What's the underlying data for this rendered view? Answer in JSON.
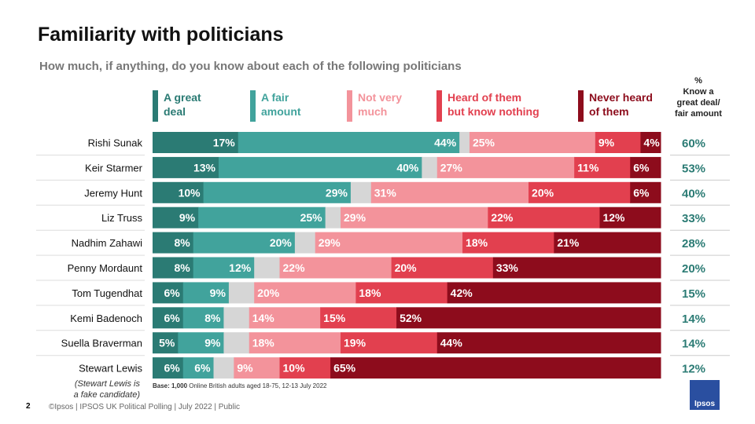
{
  "chart_data": {
    "type": "bar",
    "orientation": "horizontal-stacked-100",
    "title": "Familiarity with politicians",
    "subtitle": "How much, if anything, do you know about each of the following politicians",
    "categories": [
      "Rishi Sunak",
      "Keir Starmer",
      "Jeremy Hunt",
      "Liz Truss",
      "Nadhim Zahawi",
      "Penny Mordaunt",
      "Tom Tugendhat",
      "Kemi Badenoch",
      "Suella Braverman",
      "Stewart Lewis"
    ],
    "series": [
      {
        "name": "A great deal",
        "color": "#2b7b74",
        "values": [
          17,
          13,
          10,
          9,
          8,
          8,
          6,
          6,
          5,
          6
        ],
        "label_align": "right"
      },
      {
        "name": "A fair amount",
        "color": "#41a39c",
        "values": [
          44,
          40,
          29,
          25,
          20,
          12,
          9,
          8,
          9,
          6
        ],
        "label_align": "right"
      },
      {
        "name": "",
        "color": "#d6d6d6",
        "values": [
          2,
          3,
          4,
          3,
          4,
          5,
          5,
          5,
          5,
          4
        ],
        "label_align": "none"
      },
      {
        "name": "Not very much",
        "color": "#f3939b",
        "values": [
          25,
          27,
          31,
          29,
          29,
          22,
          20,
          14,
          18,
          9
        ],
        "label_align": "left"
      },
      {
        "name": "Heard of them but know nothing",
        "color": "#e2404f",
        "values": [
          9,
          11,
          20,
          22,
          18,
          20,
          18,
          15,
          19,
          10
        ],
        "label_align": "left"
      },
      {
        "name": "Never heard of them",
        "color": "#8d0c1c",
        "values": [
          4,
          6,
          6,
          12,
          21,
          33,
          42,
          52,
          44,
          65
        ],
        "label_align": "left"
      }
    ],
    "legend": {
      "placement": "top",
      "entries": [
        [
          "A great",
          "deal"
        ],
        [
          "A fair",
          "amount"
        ],
        [
          "Not very",
          "much"
        ],
        [
          "Heard of them",
          "but know nothing"
        ],
        [
          "Never heard",
          "of them"
        ]
      ]
    },
    "right_column": {
      "header": [
        "%",
        "Know a",
        "great deal/",
        "fair amount"
      ],
      "values": [
        "60%",
        "53%",
        "40%",
        "33%",
        "28%",
        "20%",
        "15%",
        "14%",
        "14%",
        "12%"
      ],
      "color": "#2b7b74"
    },
    "xlim": [
      0,
      100
    ],
    "grid": false
  },
  "note": [
    "(Stewart Lewis is",
    "a fake candidate)"
  ],
  "base": {
    "bold": "Base: 1,000",
    "text": " Online British adults aged 18-75, 12-13 July 2022"
  },
  "footer": {
    "page": "2",
    "text": "©Ipsos | IPSOS UK Political Polling | July 2022 | Public"
  },
  "logo_text": "Ipsos"
}
